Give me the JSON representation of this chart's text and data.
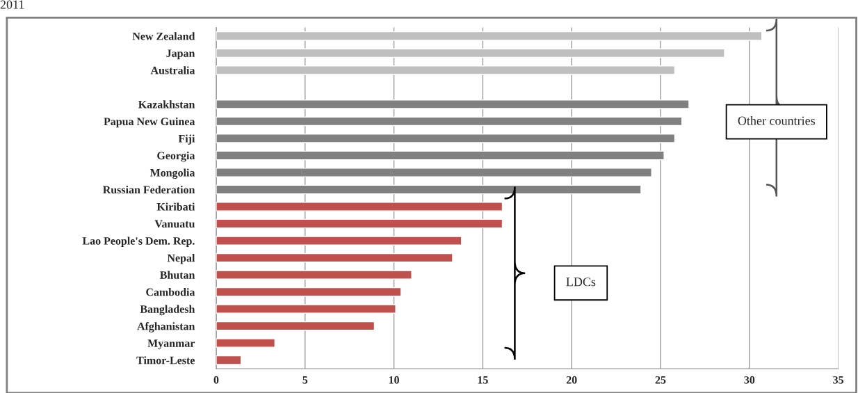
{
  "chart_data": {
    "type": "bar",
    "orientation": "horizontal",
    "title": "2011",
    "categories": [
      "New Zealand",
      "Japan",
      "Australia",
      null,
      "Kazakhstan",
      "Papua New Guinea",
      "Fiji",
      "Georgia",
      "Mongolia",
      "Russian Federation",
      "Kiribati",
      "Vanuatu",
      "Lao People's Dem. Rep.",
      "Nepal",
      "Bhutan",
      "Cambodia",
      "Bangladesh",
      "Afghanistan",
      "Myanmar",
      "Timor-Leste"
    ],
    "values": [
      30.7,
      28.6,
      25.8,
      null,
      26.6,
      26.2,
      25.8,
      25.2,
      24.5,
      23.9,
      16.1,
      16.1,
      13.8,
      13.3,
      11.0,
      10.4,
      10.1,
      8.9,
      3.3,
      1.4
    ],
    "colors": [
      "#bfbfbf",
      "#bfbfbf",
      "#bfbfbf",
      "#bfbfbf",
      "#808080",
      "#808080",
      "#808080",
      "#808080",
      "#808080",
      "#808080",
      "#c0504d",
      "#c0504d",
      "#c0504d",
      "#c0504d",
      "#c0504d",
      "#c0504d",
      "#c0504d",
      "#c0504d",
      "#c0504d",
      "#c0504d"
    ],
    "xlim": [
      0,
      35
    ],
    "xticks": [
      0,
      5,
      10,
      15,
      20,
      25,
      30,
      35
    ],
    "grid": "x",
    "legend": false,
    "annotations": [
      "Other countries",
      "LDCs"
    ]
  }
}
